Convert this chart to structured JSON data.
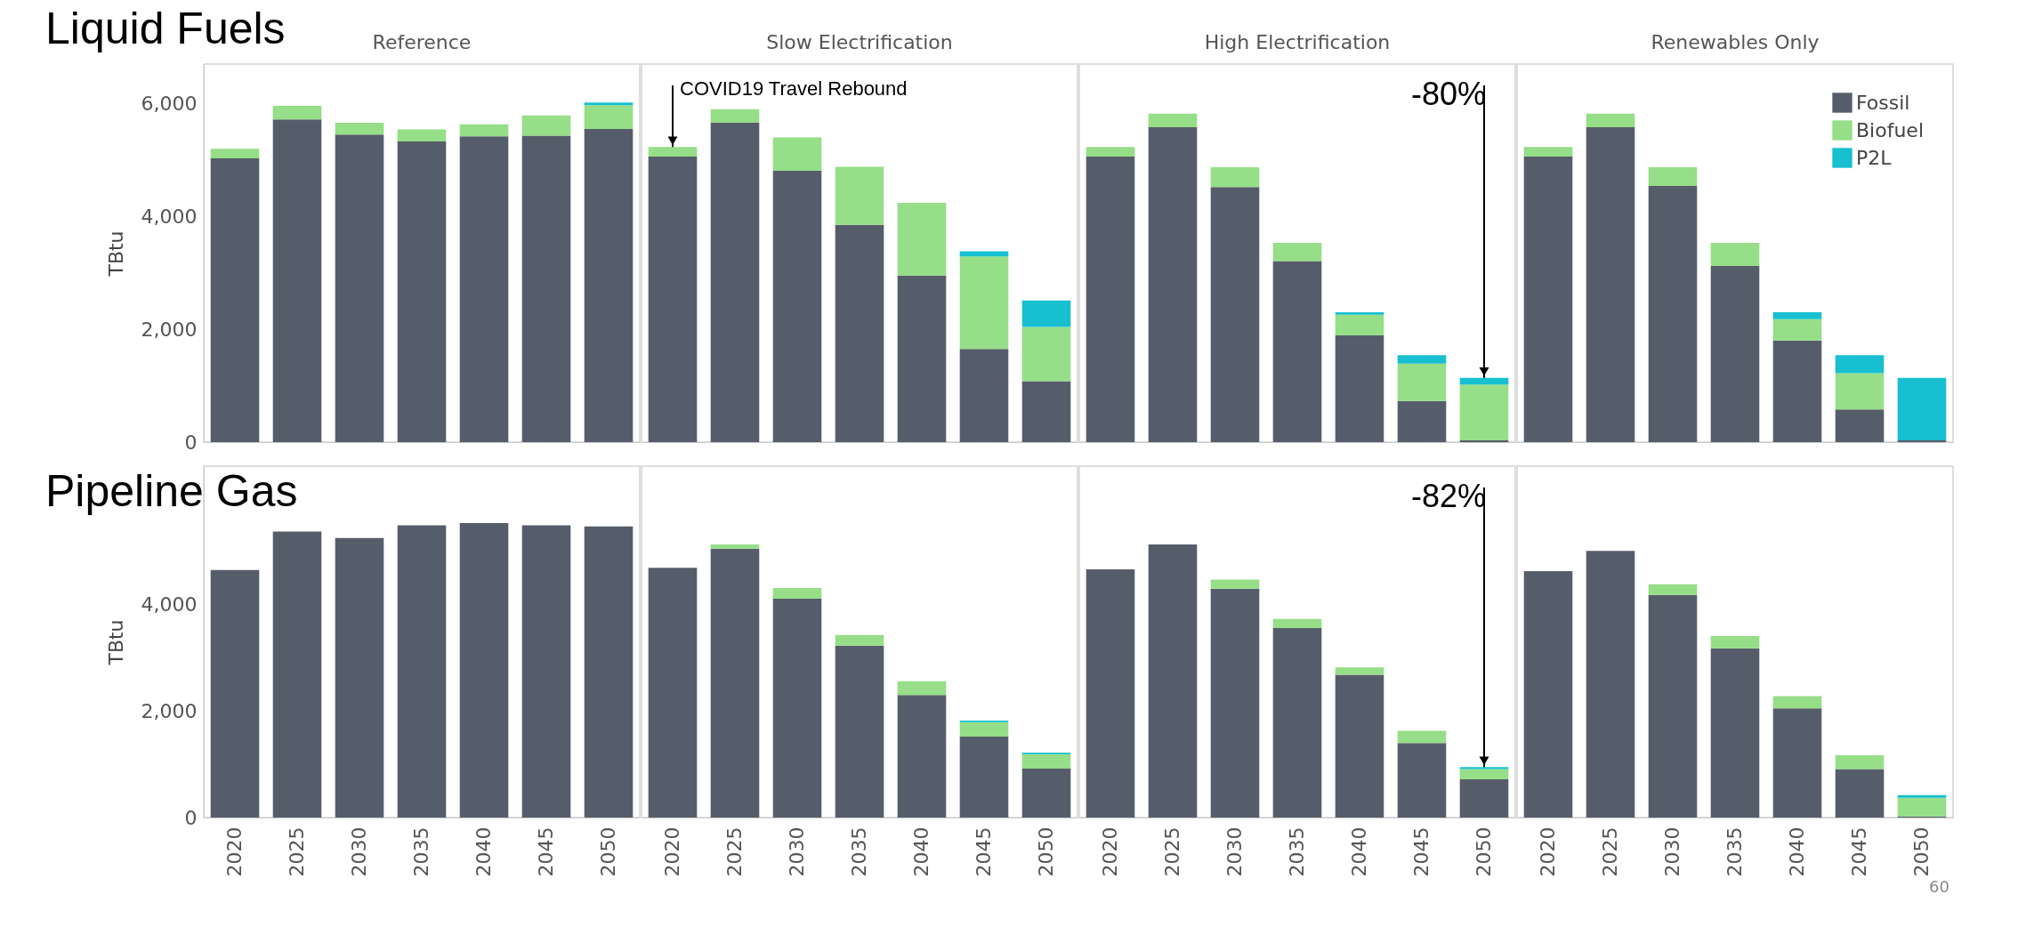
{
  "chart_data": [
    {
      "type": "bar",
      "title": "Reference",
      "ylabel": "TBtu",
      "stacked": true,
      "categories": [
        "2020",
        "2025",
        "2030",
        "2035",
        "2040",
        "2045",
        "2050"
      ],
      "ylim": [
        0,
        6700
      ],
      "yticks": [
        {
          "value": 0,
          "label": "0"
        },
        {
          "value": 2000,
          "label": "2,000"
        },
        {
          "value": 4000,
          "label": "4,000"
        },
        {
          "value": 6000,
          "label": "6,000"
        }
      ],
      "tick_labels": "y",
      "annotations": [
        "Liquid Fuels"
      ],
      "series": [
        {
          "color": "#565d6a",
          "values": [
            5030,
            5720,
            5450,
            5330,
            5420,
            5430,
            5550
          ]
        },
        {
          "color": "#96de87",
          "values": [
            170,
            240,
            210,
            210,
            210,
            360,
            420
          ]
        },
        {
          "color": "#17bfd0",
          "values": [
            null,
            null,
            null,
            null,
            null,
            null,
            50
          ]
        }
      ]
    },
    {
      "type": "bar",
      "title": "Slow Electrification",
      "stacked": true,
      "categories": [
        "2020",
        "2025",
        "2030",
        "2035",
        "2040",
        "2045",
        "2050"
      ],
      "ylim": [
        0,
        6700
      ],
      "tick_labels": false,
      "annotations": [
        {
          "text": "COVID19 Travel Rebound",
          "x": "2020",
          "y": 5230
        }
      ],
      "series": [
        {
          "color": "#565d6a",
          "values": [
            5060,
            5660,
            4810,
            3850,
            2950,
            1650,
            1080
          ]
        },
        {
          "color": "#96de87",
          "values": [
            170,
            240,
            590,
            1030,
            1290,
            1640,
            960
          ]
        },
        {
          "color": "#17bfd0",
          "values": [
            null,
            null,
            null,
            null,
            null,
            90,
            470
          ]
        }
      ]
    },
    {
      "type": "bar",
      "title": "High Electrification",
      "stacked": true,
      "categories": [
        "2020",
        "2025",
        "2030",
        "2035",
        "2040",
        "2045",
        "2050"
      ],
      "ylim": [
        0,
        6700
      ],
      "tick_labels": false,
      "annotations": [
        "-80%"
      ],
      "series": [
        {
          "color": "#565d6a",
          "values": [
            5060,
            5580,
            4520,
            3210,
            1890,
            730,
            30
          ]
        },
        {
          "color": "#96de87",
          "values": [
            170,
            240,
            350,
            320,
            370,
            660,
            990
          ]
        },
        {
          "color": "#17bfd0",
          "values": [
            null,
            null,
            null,
            null,
            40,
            150,
            120
          ]
        }
      ]
    },
    {
      "type": "bar",
      "title": "Renewables Only",
      "stacked": true,
      "categories": [
        "2020",
        "2025",
        "2030",
        "2035",
        "2040",
        "2045",
        "2050"
      ],
      "ylim": [
        0,
        6700
      ],
      "tick_labels": false,
      "legend": "top right",
      "series": [
        {
          "name": "Fossil",
          "color": "#565d6a",
          "values": [
            5060,
            5580,
            4540,
            3120,
            1800,
            580,
            30
          ]
        },
        {
          "name": "Biofuel",
          "color": "#96de87",
          "values": [
            170,
            240,
            330,
            410,
            380,
            640,
            null
          ]
        },
        {
          "name": "P2L",
          "color": "#17bfd0",
          "values": [
            null,
            null,
            null,
            null,
            120,
            320,
            1110
          ]
        }
      ]
    },
    {
      "type": "bar",
      "ylabel": "TBtu",
      "categories": [
        "2020",
        "2025",
        "2030",
        "2035",
        "2040",
        "2045",
        "2050"
      ],
      "ylim": [
        0,
        6600
      ],
      "yticks": [
        {
          "value": 0,
          "label": "0"
        },
        {
          "value": 2000,
          "label": "2,000"
        },
        {
          "value": 4000,
          "label": "4,000"
        }
      ],
      "annotations": [
        "Pipeline Gas"
      ],
      "series": [
        {
          "color": "#565d6a",
          "values": [
            4650,
            5370,
            5250,
            5490,
            5530,
            5490,
            5470
          ]
        }
      ]
    },
    {
      "type": "bar",
      "stacked": true,
      "categories": [
        "2020",
        "2025",
        "2030",
        "2035",
        "2040",
        "2045",
        "2050"
      ],
      "ylim": [
        0,
        6600
      ],
      "tick_labels": "x",
      "series": [
        {
          "color": "#565d6a",
          "values": [
            4690,
            5050,
            4110,
            3230,
            2300,
            1520,
            920
          ]
        },
        {
          "color": "#96de87",
          "values": [
            null,
            80,
            200,
            200,
            260,
            270,
            270
          ]
        },
        {
          "color": "#17bfd0",
          "values": [
            null,
            null,
            null,
            null,
            null,
            30,
            30
          ]
        }
      ]
    },
    {
      "type": "bar",
      "stacked": true,
      "categories": [
        "2020",
        "2025",
        "2030",
        "2035",
        "2040",
        "2045",
        "2050"
      ],
      "ylim": [
        0,
        6600
      ],
      "tick_labels": "x",
      "annotations": [
        "-82%"
      ],
      "series": [
        {
          "color": "#565d6a",
          "values": [
            4660,
            5130,
            4300,
            3560,
            2680,
            1400,
            720
          ]
        },
        {
          "color": "#96de87",
          "values": [
            null,
            null,
            170,
            170,
            140,
            230,
            190
          ]
        },
        {
          "color": "#17bfd0",
          "values": [
            null,
            null,
            null,
            null,
            null,
            null,
            40
          ]
        }
      ]
    },
    {
      "type": "bar",
      "stacked": true,
      "categories": [
        "2020",
        "2025",
        "2030",
        "2035",
        "2040",
        "2045",
        "2050"
      ],
      "ylim": [
        0,
        6600
      ],
      "tick_labels": "x",
      "annotations": [
        "60"
      ],
      "series": [
        {
          "color": "#565d6a",
          "values": [
            4630,
            5010,
            4180,
            3180,
            2050,
            910,
            20
          ]
        },
        {
          "color": "#96de87",
          "values": [
            null,
            null,
            200,
            230,
            230,
            260,
            350
          ]
        },
        {
          "color": "#17bfd0",
          "values": [
            null,
            null,
            null,
            null,
            null,
            null,
            50
          ]
        }
      ]
    }
  ]
}
